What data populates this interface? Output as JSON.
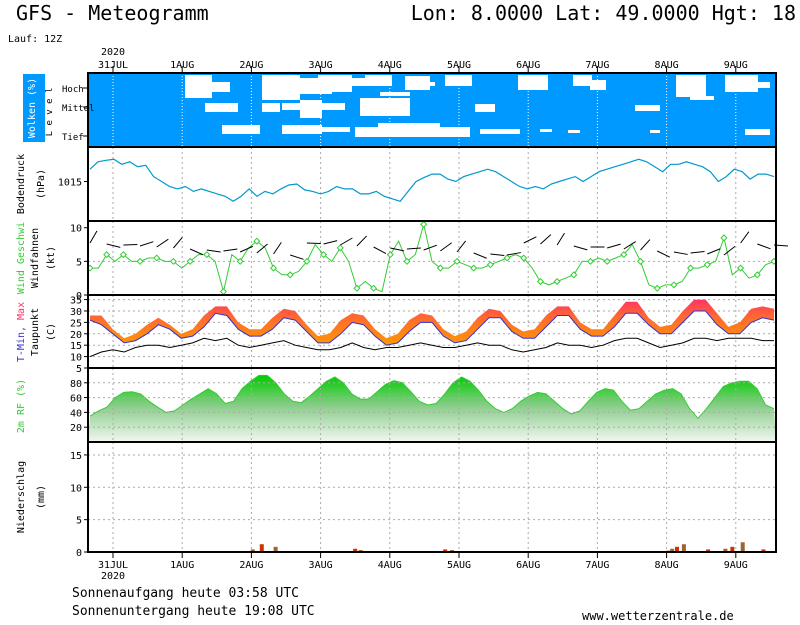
{
  "header": {
    "title": "GFS - Meteogramm",
    "location": "Lon: 8.0000 Lat: 49.0000 Hgt: 18",
    "run": "Lauf: 12Z"
  },
  "footer": {
    "sunrise": "Sonnenaufgang heute 03:58 UTC",
    "sunset": "Sonnenuntergang heute 19:08 UTC",
    "website": "www.wetterzentrale.de"
  },
  "colors": {
    "cloud_bg": "#0099ff",
    "pressure_line": "#0099cc",
    "wind_line": "#33cc33",
    "temp_max": "#ff3366",
    "temp_mid": "#ff9900",
    "temp_min": "#3333cc",
    "humidity": "#33cc33",
    "precip_brown": "#996633",
    "precip_red": "#cc3300"
  },
  "chart_data": {
    "type": "line",
    "year": "2020",
    "dates": [
      "31JUL",
      "1AUG",
      "2AUG",
      "3AUG",
      "4AUG",
      "5AUG",
      "6AUG",
      "7AUG",
      "8AUG",
      "9AUG"
    ],
    "panels": [
      {
        "id": "clouds",
        "ylabel": "Wolken (%)",
        "ylabel2": "L e v e l",
        "levels": [
          "Hoch",
          "Mittel",
          "Tief"
        ]
      },
      {
        "id": "pressure",
        "ylabel": "Bodendruck",
        "ylabel2": "(hPa)",
        "yticks": [
          "1015"
        ],
        "ylim": [
          1007,
          1022
        ],
        "values": [
          1017.5,
          1019,
          1019.3,
          1019.5,
          1018.5,
          1019,
          1018,
          1018.3,
          1016,
          1015,
          1014,
          1013.5,
          1014,
          1013,
          1013.5,
          1013,
          1012.5,
          1012,
          1011,
          1012,
          1013.5,
          1012,
          1013,
          1012.5,
          1013.5,
          1014.3,
          1014.5,
          1013.3,
          1013,
          1012.5,
          1013,
          1014,
          1013.5,
          1013.5,
          1012.5,
          1012.5,
          1013,
          1012,
          1011.5,
          1011,
          1013,
          1015,
          1015.8,
          1016.5,
          1016.5,
          1015.5,
          1015,
          1016,
          1016.5,
          1017,
          1017.5,
          1017,
          1016,
          1015,
          1014,
          1013.5,
          1014,
          1013.5,
          1014.5,
          1015,
          1015.5,
          1016,
          1015,
          1016,
          1017,
          1017.5,
          1018,
          1018.5,
          1019,
          1019.5,
          1019,
          1018,
          1017,
          1018.5,
          1018.5,
          1019,
          1018.5,
          1018,
          1017,
          1015,
          1016,
          1017.5,
          1017,
          1015.5,
          1016.5,
          1016.5,
          1016
        ]
      },
      {
        "id": "wind",
        "ylabel": "Wind Geschwi",
        "ylabel2": "Windfahnen",
        "ylabel3": "(kt)",
        "yticks": [
          "0",
          "5",
          "10"
        ],
        "ylim": [
          0,
          11
        ],
        "values": [
          4,
          4,
          6,
          5,
          6,
          5,
          5,
          5.5,
          5.5,
          5,
          5,
          4,
          5,
          6,
          6,
          5,
          0.5,
          6,
          5,
          7,
          8,
          7,
          4,
          3,
          3,
          3.5,
          5,
          7.5,
          6,
          5,
          7,
          5,
          1,
          2,
          1,
          0.5,
          6,
          8,
          5,
          6,
          10.5,
          5,
          4,
          4,
          5,
          4.5,
          4,
          4,
          4.5,
          5,
          5.5,
          6,
          5.5,
          4,
          2,
          1.5,
          2,
          2.5,
          3,
          5,
          5,
          5.5,
          5,
          5.5,
          6,
          7.5,
          5,
          1.5,
          1,
          1.5,
          1.5,
          2,
          4,
          4,
          4.5,
          5,
          8.5,
          3,
          4,
          2.5,
          3,
          4.5,
          5
        ]
      },
      {
        "id": "temperature",
        "ylabel": "T-Min, Max",
        "ylabel2": "Taupunkt",
        "ylabel3": "(C)",
        "yticks": [
          "5",
          "10",
          "15",
          "20",
          "25",
          "30",
          "35"
        ],
        "ylim": [
          5,
          37
        ],
        "tmax": [
          28,
          28,
          22,
          18,
          20,
          24,
          27,
          24,
          20,
          22,
          28,
          32,
          32,
          25,
          22,
          22,
          27,
          31,
          30,
          24,
          19,
          20,
          26,
          29,
          28,
          22,
          18,
          20,
          26,
          29,
          28,
          22,
          19,
          21,
          27,
          31,
          30,
          24,
          21,
          22,
          28,
          32,
          32,
          25,
          22,
          22,
          28,
          34,
          34,
          27,
          23,
          24,
          30,
          35,
          35,
          29,
          23,
          25,
          31,
          32,
          31
        ],
        "tmin": [
          26,
          24,
          20,
          16,
          17,
          20,
          24,
          22,
          18,
          19,
          23,
          29,
          28,
          22,
          19,
          19,
          22,
          27,
          26,
          21,
          16,
          16,
          20,
          25,
          24,
          19,
          15,
          16,
          21,
          25,
          25,
          19,
          16,
          17,
          22,
          27,
          27,
          21,
          18,
          18,
          23,
          28,
          28,
          22,
          19,
          19,
          23,
          29,
          29,
          24,
          20,
          20,
          25,
          30,
          30,
          24,
          20,
          20,
          25,
          27,
          26
        ],
        "dewpoint": [
          10,
          12,
          13,
          12,
          14,
          15,
          15,
          14,
          15,
          16,
          18,
          17,
          18,
          15,
          14,
          15,
          16,
          17,
          15,
          14,
          13,
          13,
          14,
          16,
          14,
          13,
          14,
          14,
          15,
          16,
          15,
          14,
          14,
          15,
          16,
          15,
          15,
          13,
          12,
          13,
          14,
          16,
          15,
          15,
          14,
          15,
          17,
          18,
          18,
          16,
          14,
          15,
          16,
          18,
          18,
          17,
          18,
          18,
          18,
          17,
          17
        ]
      },
      {
        "id": "humidity",
        "ylabel": "2m RF (%)",
        "yticks": [
          "20",
          "40",
          "60",
          "80"
        ],
        "ylim": [
          0,
          100
        ],
        "values": [
          35,
          42,
          47,
          60,
          67,
          68,
          65,
          55,
          47,
          40,
          42,
          50,
          58,
          65,
          72,
          65,
          52,
          55,
          72,
          82,
          90,
          90,
          80,
          65,
          55,
          53,
          62,
          72,
          82,
          88,
          80,
          65,
          58,
          58,
          68,
          78,
          83,
          80,
          68,
          55,
          50,
          52,
          65,
          80,
          88,
          82,
          70,
          55,
          45,
          40,
          45,
          55,
          62,
          67,
          65,
          55,
          45,
          38,
          42,
          55,
          67,
          72,
          70,
          55,
          43,
          45,
          55,
          65,
          70,
          72,
          65,
          45,
          32,
          45,
          60,
          75,
          80,
          82,
          82,
          72,
          50,
          45
        ]
      },
      {
        "id": "precip",
        "ylabel": "Niederschlag",
        "ylabel2": "(mm)",
        "yticks": [
          "0",
          "5",
          "10",
          "15"
        ],
        "ylim": [
          0,
          17
        ],
        "bars": [
          {
            "day": 2.02,
            "value": 0.4,
            "color": "brown"
          },
          {
            "day": 2.15,
            "value": 1.2,
            "color": "red"
          },
          {
            "day": 2.35,
            "value": 0.8,
            "color": "brown"
          },
          {
            "day": 3.5,
            "value": 0.5,
            "color": "red"
          },
          {
            "day": 3.58,
            "value": 0.3,
            "color": "brown"
          },
          {
            "day": 4.8,
            "value": 0.4,
            "color": "red"
          },
          {
            "day": 4.9,
            "value": 0.3,
            "color": "brown"
          },
          {
            "day": 8.02,
            "value": 0.2,
            "color": "red"
          },
          {
            "day": 8.08,
            "value": 0.5,
            "color": "brown"
          },
          {
            "day": 8.15,
            "value": 0.8,
            "color": "red"
          },
          {
            "day": 8.25,
            "value": 1.2,
            "color": "brown"
          },
          {
            "day": 8.6,
            "value": 0.4,
            "color": "red"
          },
          {
            "day": 8.85,
            "value": 0.5,
            "color": "brown"
          },
          {
            "day": 8.95,
            "value": 0.8,
            "color": "red"
          },
          {
            "day": 9.1,
            "value": 1.5,
            "color": "brown"
          },
          {
            "day": 9.4,
            "value": 0.4,
            "color": "red"
          }
        ]
      }
    ]
  }
}
